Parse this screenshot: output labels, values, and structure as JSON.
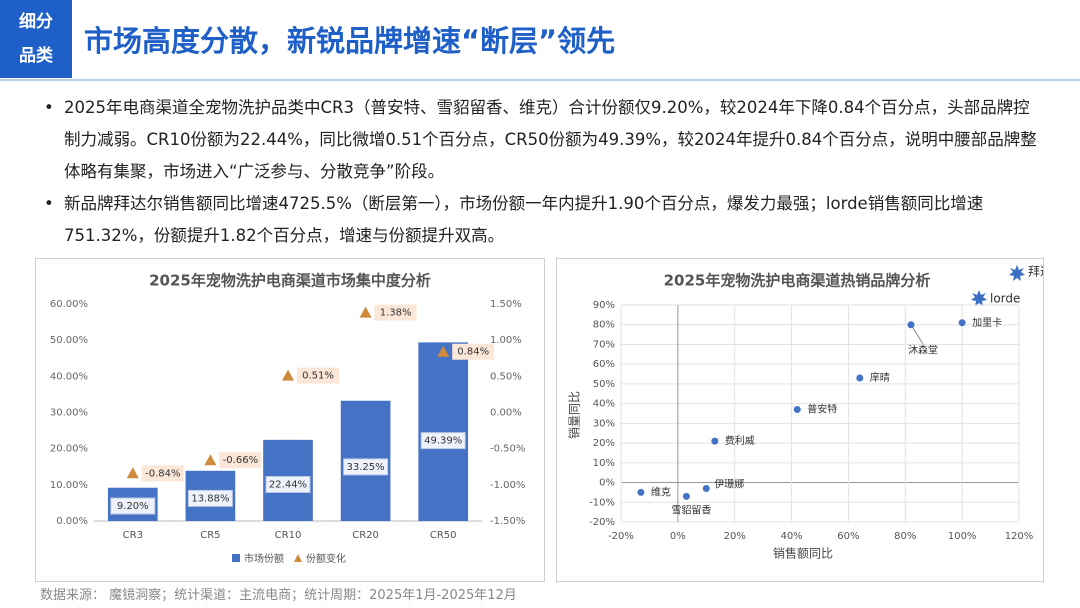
{
  "header": {
    "tag": [
      "细分",
      "品类"
    ],
    "title": "市场高度分散，新锐品牌增速“断层”领先"
  },
  "bullets": [
    "2025年电商渠道全宠物洗护品类中CR3（普安特、雪貂留香、维克）合计份额仅9.20%，较2024年下降0.84个百分点，头部品牌控制力减弱。CR10份额为22.44%，同比微增0.51个百分点，CR50份额为49.39%，较2024年提升0.84个百分点，说明中腰部品牌整体略有集聚，市场进入“广泛参与、分散竞争”阶段。",
    "新品牌拜达尔销售额同比增速4725.5%（断层第一），市场份额一年内提升1.90个百分点，爆发力最强；lorde销售额同比增速751.32%，份额提升1.82个百分点，增速与份额提升双高。"
  ],
  "source": "数据来源： 魔镜洞察；统计渠道：主流电商；统计周期：2025年1月-2025年12月",
  "chart_data": [
    {
      "type": "bar",
      "title": "2025年宠物洗护电商渠道市场集中度分析",
      "categories": [
        "CR3",
        "CR5",
        "CR10",
        "CR20",
        "CR50"
      ],
      "series": [
        {
          "name": "市场份额",
          "color": "#4472c4",
          "values": [
            9.2,
            13.88,
            22.44,
            33.25,
            49.39
          ],
          "value_labels": [
            "9.20%",
            "13.88%",
            "22.44%",
            "33.25%",
            "49.39%"
          ]
        },
        {
          "name": "份额变化",
          "color": "#d08a3c",
          "axis": "y2",
          "values": [
            -0.84,
            -0.66,
            0.51,
            1.38,
            0.84
          ],
          "value_labels": [
            "-0.84%",
            "-0.66%",
            "0.51%",
            "1.38%",
            "0.84%"
          ]
        }
      ],
      "ylim": [
        0,
        60
      ],
      "yticks": [
        {
          "value": 0,
          "label": "0.00%"
        },
        {
          "value": 10,
          "label": "10.00%"
        },
        {
          "value": 20,
          "label": "20.00%"
        },
        {
          "value": 30,
          "label": "30.00%"
        },
        {
          "value": 40,
          "label": "40.00%"
        },
        {
          "value": 50,
          "label": "50.00%"
        },
        {
          "value": 60,
          "label": "60.00%"
        }
      ],
      "y2lim": [
        -1.5,
        1.5
      ],
      "y2ticks": [
        {
          "value": -1.5,
          "label": "-1.50%"
        },
        {
          "value": -1,
          "label": "-1.00%"
        },
        {
          "value": -0.5,
          "label": "-0.50%"
        },
        {
          "value": 0,
          "label": "0.00%"
        },
        {
          "value": 0.5,
          "label": "0.50%"
        },
        {
          "value": 1,
          "label": "1.00%"
        },
        {
          "value": 1.5,
          "label": "1.50%"
        }
      ],
      "grid": false,
      "legend": "bottom"
    },
    {
      "type": "scatter",
      "title": "2025年宠物洗护电商渠道热销品牌分析",
      "xlabel": "销售额同比",
      "ylabel": "销量同比",
      "color": "#4472c4",
      "labels": [
        "维克",
        "雪貂留香",
        "伊珊娜",
        "费利威",
        "普安特",
        "庠晴",
        "沐森堂",
        "加里卡"
      ],
      "x": [
        -13,
        3,
        10,
        13,
        42,
        64,
        82,
        100
      ],
      "values": [
        -5,
        -7,
        -3,
        21,
        37,
        53,
        80,
        81
      ],
      "annotations": [
        "拜达尔",
        "lorde"
      ],
      "xlim": [
        -20,
        120
      ],
      "xticks": [
        {
          "value": -20,
          "label": "-20%"
        },
        {
          "value": 0,
          "label": "0%"
        },
        {
          "value": 20,
          "label": "20%"
        },
        {
          "value": 40,
          "label": "40%"
        },
        {
          "value": 60,
          "label": "60%"
        },
        {
          "value": 80,
          "label": "80%"
        },
        {
          "value": 100,
          "label": "100%"
        },
        {
          "value": 120,
          "label": "120%"
        }
      ],
      "ylim": [
        -20,
        90
      ],
      "yticks": [
        {
          "value": -20,
          "label": "-20%"
        },
        {
          "value": -10,
          "label": "-10%"
        },
        {
          "value": 0,
          "label": "0%"
        },
        {
          "value": 10,
          "label": "10%"
        },
        {
          "value": 20,
          "label": "20%"
        },
        {
          "value": 30,
          "label": "30%"
        },
        {
          "value": 40,
          "label": "40%"
        },
        {
          "value": 50,
          "label": "50%"
        },
        {
          "value": 60,
          "label": "60%"
        },
        {
          "value": 70,
          "label": "70%"
        },
        {
          "value": 80,
          "label": "80%"
        },
        {
          "value": 90,
          "label": "90%"
        }
      ],
      "grid": true
    }
  ]
}
